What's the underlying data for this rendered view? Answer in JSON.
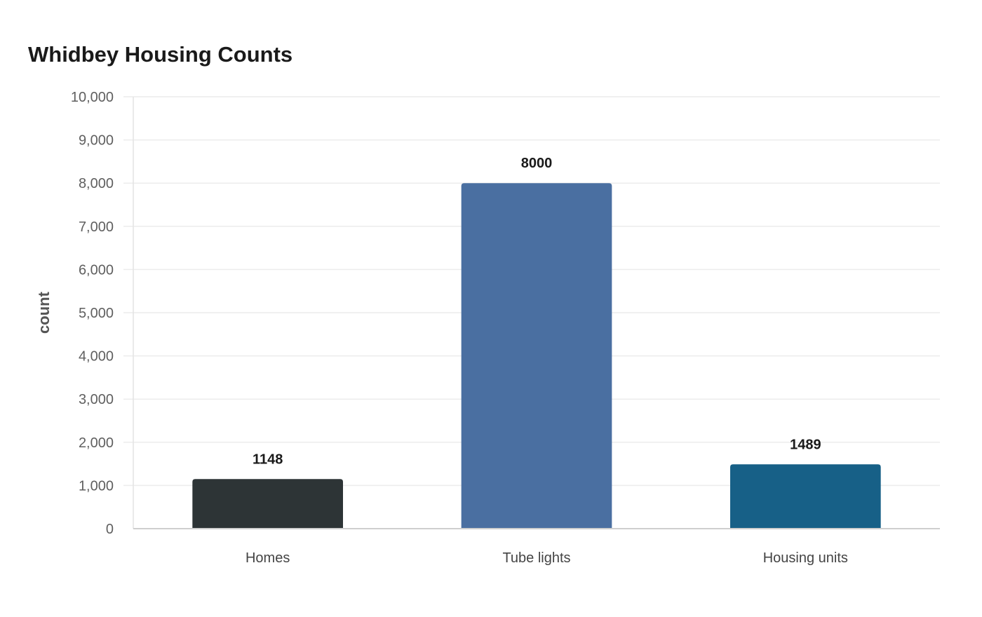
{
  "chart_data": {
    "type": "bar",
    "title": "Whidbey Housing Counts",
    "xlabel": "",
    "ylabel": "count",
    "categories": [
      "Homes",
      "Tube lights",
      "Housing units"
    ],
    "values": [
      1148,
      8000,
      1489
    ],
    "colors": [
      "#2d3436",
      "#4a6fa1",
      "#176087"
    ],
    "ylim": [
      0,
      10000
    ],
    "yticks": [
      0,
      1000,
      2000,
      3000,
      4000,
      5000,
      6000,
      7000,
      8000,
      9000,
      10000
    ],
    "ytick_labels": [
      "0",
      "1,000",
      "2,000",
      "3,000",
      "4,000",
      "5,000",
      "6,000",
      "7,000",
      "8,000",
      "9,000",
      "10,000"
    ],
    "grid": true,
    "legend": "none"
  }
}
